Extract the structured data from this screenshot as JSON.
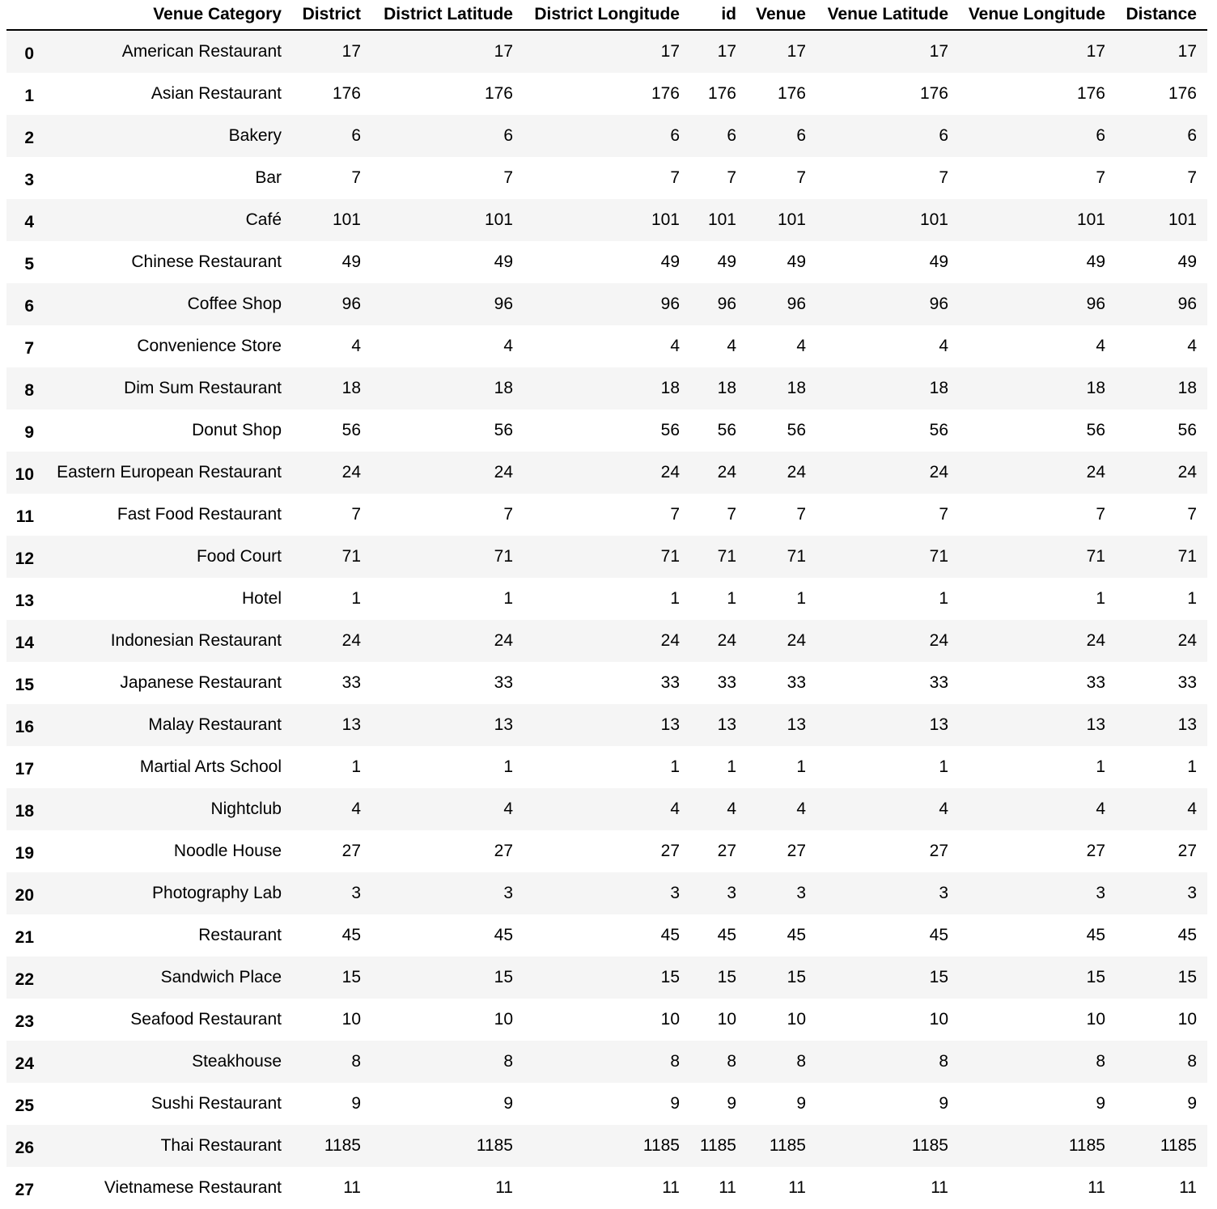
{
  "table": {
    "columns": [
      "",
      "Venue Category",
      "District",
      "District Latitude",
      "District Longitude",
      "id",
      "Venue",
      "Venue Latitude",
      "Venue Longitude",
      "Distance"
    ],
    "rows": [
      {
        "index": "0",
        "category": "American Restaurant",
        "count": "17"
      },
      {
        "index": "1",
        "category": "Asian Restaurant",
        "count": "176"
      },
      {
        "index": "2",
        "category": "Bakery",
        "count": "6"
      },
      {
        "index": "3",
        "category": "Bar",
        "count": "7"
      },
      {
        "index": "4",
        "category": "Café",
        "count": "101"
      },
      {
        "index": "5",
        "category": "Chinese Restaurant",
        "count": "49"
      },
      {
        "index": "6",
        "category": "Coffee Shop",
        "count": "96"
      },
      {
        "index": "7",
        "category": "Convenience Store",
        "count": "4"
      },
      {
        "index": "8",
        "category": "Dim Sum Restaurant",
        "count": "18"
      },
      {
        "index": "9",
        "category": "Donut Shop",
        "count": "56"
      },
      {
        "index": "10",
        "category": "Eastern European Restaurant",
        "count": "24"
      },
      {
        "index": "11",
        "category": "Fast Food Restaurant",
        "count": "7"
      },
      {
        "index": "12",
        "category": "Food Court",
        "count": "71"
      },
      {
        "index": "13",
        "category": "Hotel",
        "count": "1"
      },
      {
        "index": "14",
        "category": "Indonesian Restaurant",
        "count": "24"
      },
      {
        "index": "15",
        "category": "Japanese Restaurant",
        "count": "33"
      },
      {
        "index": "16",
        "category": "Malay Restaurant",
        "count": "13"
      },
      {
        "index": "17",
        "category": "Martial Arts School",
        "count": "1"
      },
      {
        "index": "18",
        "category": "Nightclub",
        "count": "4"
      },
      {
        "index": "19",
        "category": "Noodle House",
        "count": "27"
      },
      {
        "index": "20",
        "category": "Photography Lab",
        "count": "3"
      },
      {
        "index": "21",
        "category": "Restaurant",
        "count": "45"
      },
      {
        "index": "22",
        "category": "Sandwich Place",
        "count": "15"
      },
      {
        "index": "23",
        "category": "Seafood Restaurant",
        "count": "10"
      },
      {
        "index": "24",
        "category": "Steakhouse",
        "count": "8"
      },
      {
        "index": "25",
        "category": "Sushi Restaurant",
        "count": "9"
      },
      {
        "index": "26",
        "category": "Thai Restaurant",
        "count": "1185"
      },
      {
        "index": "27",
        "category": "Vietnamese Restaurant",
        "count": "11"
      }
    ]
  },
  "colors": {
    "row_stripe": "#f5f5f5",
    "row_plain": "#ffffff",
    "header_rule": "#000000"
  }
}
